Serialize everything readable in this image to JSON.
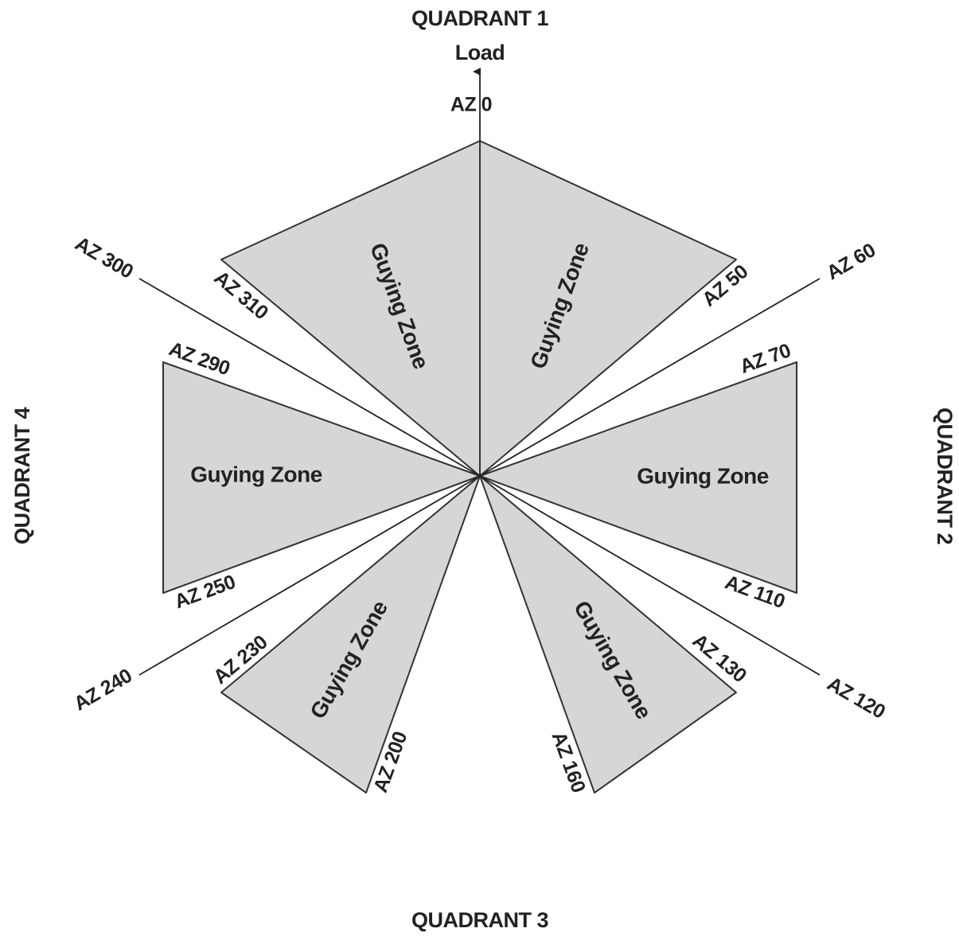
{
  "quadrants": [
    "QUADRANT 1",
    "QUADRANT 2",
    "QUADRANT 3",
    "QUADRANT 4"
  ],
  "load": "Load",
  "azimuth_labels": [
    "AZ 0",
    "AZ 50",
    "AZ 60",
    "AZ 70",
    "AZ 110",
    "AZ 120",
    "AZ 130",
    "AZ 160",
    "AZ 200",
    "AZ 230",
    "AZ 240",
    "AZ 250",
    "AZ 290",
    "AZ 300",
    "AZ 310"
  ],
  "zones": [
    "Guying Zone",
    "Guying Zone",
    "Guying Zone",
    "Guying Zone",
    "Guying Zone",
    "Guying Zone"
  ]
}
